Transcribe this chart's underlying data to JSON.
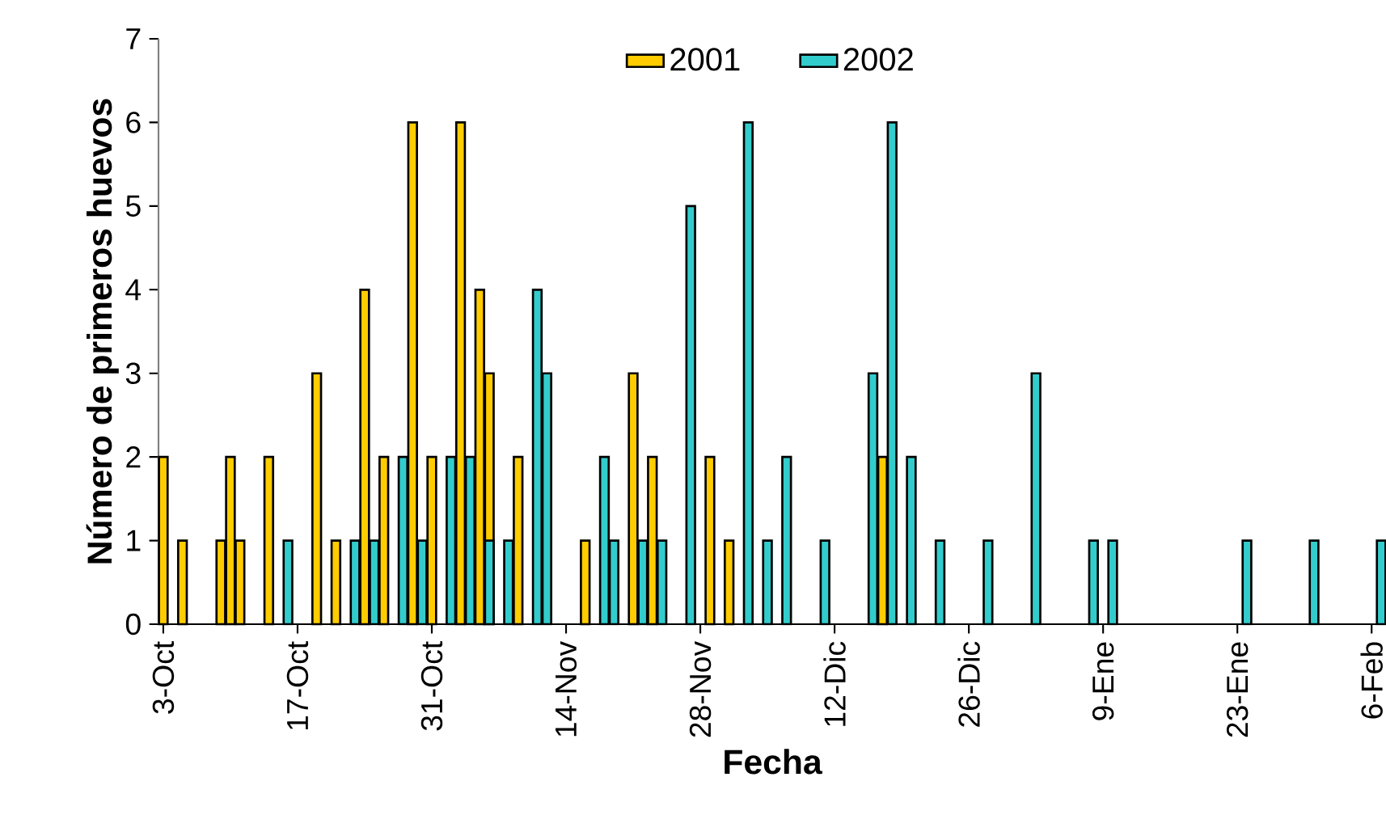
{
  "chart_data": {
    "type": "bar",
    "xlabel": "Fecha",
    "ylabel": "Número de primeros huevos",
    "categories": [
      "3-Oct",
      null,
      null,
      null,
      null,
      null,
      null,
      null,
      null,
      null,
      null,
      null,
      null,
      null,
      "17-Oct",
      null,
      null,
      null,
      null,
      null,
      null,
      null,
      null,
      null,
      null,
      null,
      null,
      null,
      "31-Oct",
      null,
      null,
      null,
      null,
      null,
      null,
      null,
      null,
      null,
      null,
      null,
      null,
      null,
      "14-Nov",
      null,
      null,
      null,
      null,
      null,
      null,
      null,
      null,
      null,
      null,
      null,
      null,
      null,
      "28-Nov",
      null,
      null,
      null,
      null,
      null,
      null,
      null,
      null,
      null,
      null,
      null,
      null,
      null,
      "12-Dic",
      null,
      null,
      null,
      null,
      null,
      null,
      null,
      null,
      null,
      null,
      null,
      null,
      null,
      "26-Dic",
      null,
      null,
      null,
      null,
      null,
      null,
      null,
      null,
      null,
      null,
      null,
      null,
      null,
      "9-Ene",
      null,
      null,
      null,
      null,
      null,
      null,
      null,
      null,
      null,
      null,
      null,
      null,
      null,
      "23-Ene",
      null,
      null,
      null,
      null,
      null,
      null,
      null,
      null,
      null,
      null,
      null,
      null,
      null,
      "6-Feb",
      null
    ],
    "ylim": [
      0,
      7
    ],
    "yticks": [
      0,
      1,
      2,
      3,
      4,
      5,
      6,
      7
    ],
    "legend": "top",
    "series": [
      {
        "name": "2001",
        "color": "#ffcc00",
        "values": [
          2,
          null,
          1,
          null,
          null,
          null,
          1,
          2,
          1,
          null,
          null,
          2,
          null,
          null,
          null,
          null,
          3,
          null,
          1,
          null,
          null,
          4,
          null,
          2,
          null,
          null,
          6,
          null,
          2,
          null,
          null,
          6,
          null,
          4,
          3,
          null,
          null,
          2,
          null,
          null,
          null,
          null,
          null,
          null,
          1,
          null,
          null,
          null,
          null,
          3,
          null,
          2,
          null,
          null,
          null,
          null,
          null,
          2,
          null,
          1,
          null,
          null,
          null,
          null,
          null,
          null,
          null,
          null,
          null,
          null,
          null,
          null,
          null,
          null,
          null,
          2,
          null,
          null,
          null,
          null,
          null,
          null,
          null,
          null,
          null,
          null,
          null,
          null,
          null,
          null,
          null,
          null,
          null,
          null,
          null,
          null,
          null,
          null,
          null,
          null,
          null,
          null,
          null,
          null,
          null,
          null,
          null,
          null,
          null,
          null,
          null,
          null,
          null,
          null,
          null,
          null,
          null,
          null,
          null,
          null,
          null,
          null,
          null,
          null,
          null,
          null,
          null,
          null
        ]
      },
      {
        "name": "2002",
        "color": "#33cccc",
        "values": [
          null,
          null,
          null,
          null,
          null,
          null,
          null,
          null,
          null,
          null,
          null,
          null,
          null,
          1,
          null,
          null,
          null,
          null,
          null,
          null,
          1,
          null,
          1,
          null,
          null,
          2,
          null,
          1,
          null,
          null,
          2,
          null,
          2,
          null,
          1,
          null,
          1,
          null,
          null,
          4,
          3,
          null,
          null,
          null,
          null,
          null,
          2,
          1,
          null,
          null,
          1,
          null,
          1,
          null,
          null,
          5,
          null,
          null,
          null,
          null,
          null,
          6,
          null,
          1,
          null,
          2,
          null,
          null,
          null,
          1,
          null,
          null,
          null,
          null,
          3,
          null,
          6,
          null,
          2,
          null,
          null,
          1,
          null,
          null,
          null,
          null,
          1,
          null,
          null,
          null,
          null,
          3,
          null,
          null,
          null,
          null,
          null,
          1,
          null,
          1,
          null,
          null,
          null,
          null,
          null,
          null,
          null,
          null,
          null,
          null,
          null,
          null,
          null,
          1,
          null,
          null,
          null,
          null,
          null,
          null,
          1,
          null,
          null,
          null,
          null,
          null,
          null,
          1
        ]
      }
    ]
  }
}
